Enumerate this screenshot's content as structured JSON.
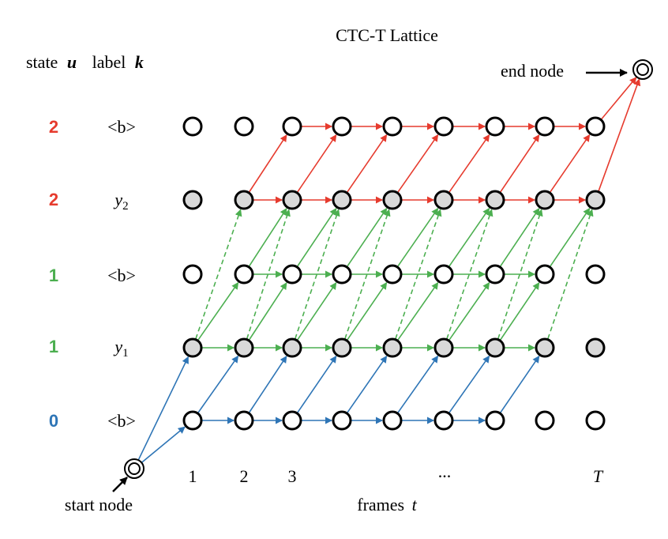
{
  "title": "CTC-T Lattice",
  "header": {
    "state_label": "state",
    "state_var": "u",
    "label_label": "label",
    "label_var": "k"
  },
  "rows": [
    {
      "state": "2",
      "label": "<b>",
      "state_color": "#e63b2e",
      "shaded": false
    },
    {
      "state": "2",
      "label_base": "y",
      "label_sub": "2",
      "state_color": "#e63b2e",
      "shaded": true
    },
    {
      "state": "1",
      "label": "<b>",
      "state_color": "#4caf50",
      "shaded": false
    },
    {
      "state": "1",
      "label_base": "y",
      "label_sub": "1",
      "state_color": "#4caf50",
      "shaded": true
    },
    {
      "state": "0",
      "label": "<b>",
      "state_color": "#2e75b6",
      "shaded": false
    }
  ],
  "frame_ticks": [
    "1",
    "2",
    "3",
    "...",
    "T"
  ],
  "axis": {
    "label": "frames",
    "var": "t"
  },
  "start_node_label": "start node",
  "end_node_label": "end node",
  "colors": {
    "red": "#e63b2e",
    "green": "#4caf50",
    "blue": "#2e75b6",
    "shaded_fill": "#d9d9d9",
    "node_stroke": "#000000"
  }
}
